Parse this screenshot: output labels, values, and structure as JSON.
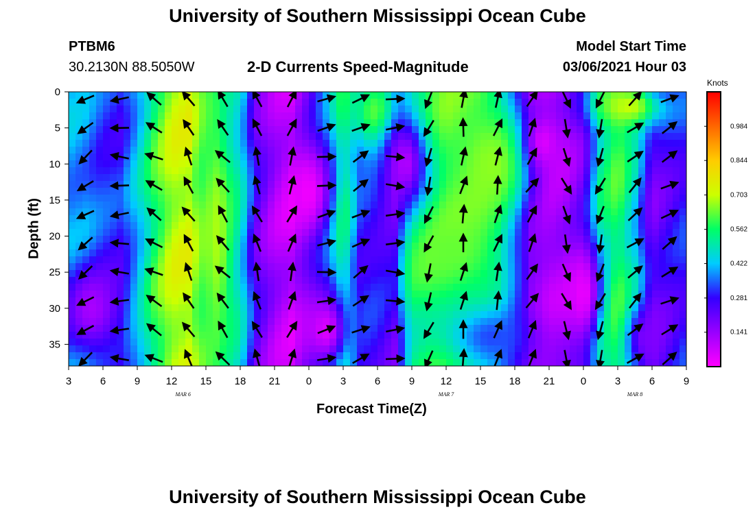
{
  "header": {
    "title_top": "University of Southern Mississippi Ocean Cube",
    "station_id": "PTBM6",
    "station_coords": "30.2130N 88.5050W",
    "plot_title": "2-D Currents Speed-Magnitude",
    "model_label": "Model Start Time",
    "model_time": "03/06/2021 Hour 03",
    "title_bottom": "University of Southern Mississippi Ocean Cube"
  },
  "chart_data": {
    "type": "heatmap",
    "title": "2-D Currents Speed-Magnitude",
    "xlabel": "Forecast Time(Z)",
    "ylabel": "Depth (ft)",
    "x_ticks": [
      "3",
      "6",
      "9",
      "12",
      "15",
      "18",
      "21",
      "0",
      "3",
      "6",
      "9",
      "12",
      "15",
      "18",
      "21",
      "0",
      "3",
      "6",
      "9"
    ],
    "x_range_hours": [
      0,
      54
    ],
    "date_labels": [
      {
        "text": "MAR 6",
        "hour": 10
      },
      {
        "text": "MAR 7",
        "hour": 33
      },
      {
        "text": "MAR 8",
        "hour": 49.5
      }
    ],
    "y_ticks": [
      "0",
      "5",
      "10",
      "15",
      "20",
      "25",
      "30",
      "35"
    ],
    "y_range": [
      0,
      38
    ],
    "y_inverted": true,
    "colorbar": {
      "title": "Knots",
      "ticks": [
        "0.141",
        "0.281",
        "0.422",
        "0.562",
        "0.703",
        "0.844",
        "0.984"
      ],
      "tick_values": [
        0.141,
        0.281,
        0.422,
        0.562,
        0.703,
        0.844,
        0.984
      ],
      "range": [
        0,
        1.125
      ],
      "colors": [
        "#ff00ff",
        "#9900ff",
        "#3300ff",
        "#00ccff",
        "#00ff66",
        "#ccff00",
        "#ffcc00",
        "#ff6600",
        "#ff0000"
      ]
    },
    "bands": [
      {
        "hour": 0.0,
        "speed": 0.4
      },
      {
        "hour": 1.5,
        "speed": 0.38
      },
      {
        "hour": 3.0,
        "speed": 0.32
      },
      {
        "hour": 4.5,
        "speed": 0.3
      },
      {
        "hour": 6.0,
        "speed": 0.42
      },
      {
        "hour": 7.5,
        "speed": 0.58
      },
      {
        "hour": 9.0,
        "speed": 0.7
      },
      {
        "hour": 10.5,
        "speed": 0.72
      },
      {
        "hour": 12.0,
        "speed": 0.55
      },
      {
        "hour": 13.5,
        "speed": 0.42
      },
      {
        "hour": 15.0,
        "speed": 0.45
      },
      {
        "hour": 16.5,
        "speed": 0.22
      },
      {
        "hour": 18.0,
        "speed": 0.12
      },
      {
        "hour": 19.5,
        "speed": 0.08
      },
      {
        "hour": 21.0,
        "speed": 0.2
      },
      {
        "hour": 22.5,
        "speed": 0.35
      },
      {
        "hour": 24.0,
        "speed": 0.55
      },
      {
        "hour": 25.5,
        "speed": 0.3
      },
      {
        "hour": 27.0,
        "speed": 0.28
      },
      {
        "hour": 28.5,
        "speed": 0.22
      },
      {
        "hour": 30.0,
        "speed": 0.55
      },
      {
        "hour": 31.5,
        "speed": 0.6
      },
      {
        "hour": 33.0,
        "speed": 0.62
      },
      {
        "hour": 34.5,
        "speed": 0.6
      },
      {
        "hour": 36.0,
        "speed": 0.58
      },
      {
        "hour": 37.5,
        "speed": 0.5
      },
      {
        "hour": 39.0,
        "speed": 0.3
      },
      {
        "hour": 40.5,
        "speed": 0.1
      },
      {
        "hour": 42.0,
        "speed": 0.08
      },
      {
        "hour": 43.5,
        "speed": 0.12
      },
      {
        "hour": 45.0,
        "speed": 0.2
      },
      {
        "hour": 46.5,
        "speed": 0.5
      },
      {
        "hour": 48.0,
        "speed": 0.6
      },
      {
        "hour": 49.5,
        "speed": 0.45
      },
      {
        "hour": 51.0,
        "speed": 0.2
      },
      {
        "hour": 52.5,
        "speed": 0.25
      },
      {
        "hour": 54.0,
        "speed": 0.3
      }
    ],
    "patches": [
      {
        "hour": 2.0,
        "depth": 30,
        "rx": 2.5,
        "ry": 6,
        "speed": 0.12
      },
      {
        "hour": 13.0,
        "depth": 20,
        "rx": 1.5,
        "ry": 20,
        "speed": 0.68
      },
      {
        "hour": 21.0,
        "depth": 14,
        "rx": 1.8,
        "ry": 6,
        "speed": 0.02
      },
      {
        "hour": 22.5,
        "depth": 33,
        "rx": 2.0,
        "ry": 5,
        "speed": 0.05
      },
      {
        "hour": 27.0,
        "depth": 3,
        "rx": 2.5,
        "ry": 6,
        "speed": 0.65
      },
      {
        "hour": 29.5,
        "depth": 10,
        "rx": 2.0,
        "ry": 7,
        "speed": 0.1
      },
      {
        "hour": 33.5,
        "depth": 22,
        "rx": 3.5,
        "ry": 6,
        "speed": 0.63
      },
      {
        "hour": 37.0,
        "depth": 10,
        "rx": 3.5,
        "ry": 9,
        "speed": 0.66
      },
      {
        "hour": 37.0,
        "depth": 34,
        "rx": 4.5,
        "ry": 5,
        "speed": 0.33
      },
      {
        "hour": 41.5,
        "depth": 7,
        "rx": 1.5,
        "ry": 4,
        "speed": 0.05
      },
      {
        "hour": 45.0,
        "depth": 28,
        "rx": 1.5,
        "ry": 6,
        "speed": 0.03
      },
      {
        "hour": 49.0,
        "depth": 2,
        "rx": 3.0,
        "ry": 3,
        "speed": 0.7
      },
      {
        "hour": 50.5,
        "depth": 34,
        "rx": 1.5,
        "ry": 4,
        "speed": 0.18
      }
    ],
    "vectors": [
      {
        "hour": 1.5,
        "dir": 235
      },
      {
        "hour": 4.5,
        "dir": 270
      },
      {
        "hour": 7.5,
        "dir": 300
      },
      {
        "hour": 10.5,
        "dir": 330
      },
      {
        "hour": 13.5,
        "dir": 320
      },
      {
        "hour": 16.5,
        "dir": 340
      },
      {
        "hour": 19.5,
        "dir": 20
      },
      {
        "hour": 22.5,
        "dir": 80
      },
      {
        "hour": 25.5,
        "dir": 60
      },
      {
        "hour": 28.5,
        "dir": 90
      },
      {
        "hour": 31.5,
        "dir": 200
      },
      {
        "hour": 34.5,
        "dir": 10
      },
      {
        "hour": 37.5,
        "dir": 15
      },
      {
        "hour": 40.5,
        "dir": 30
      },
      {
        "hour": 43.5,
        "dir": 160
      },
      {
        "hour": 46.5,
        "dir": 200
      },
      {
        "hour": 49.5,
        "dir": 50
      },
      {
        "hour": 52.5,
        "dir": 60
      }
    ],
    "vector_depths": [
      1,
      5,
      9,
      13,
      17,
      21,
      25,
      29,
      33,
      37
    ]
  }
}
